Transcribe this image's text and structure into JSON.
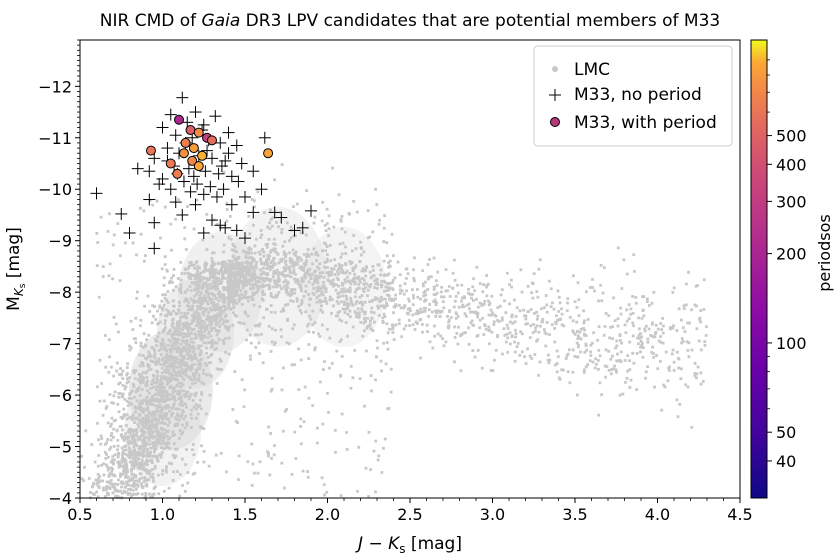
{
  "chart_data": {
    "type": "scatter",
    "title": "NIR CMD of Gaia DR3 LPV candidates that are potential members of M33",
    "xlabel": "J − K_s [mag]",
    "ylabel": "M_Ks [mag]",
    "xlim": [
      0.5,
      4.5
    ],
    "ylim": [
      -4,
      -12.9
    ],
    "y_inverted": true,
    "xticks": [
      0.5,
      1.0,
      1.5,
      2.0,
      2.5,
      3.0,
      3.5,
      4.0,
      4.5
    ],
    "xtick_labels": [
      "0.5",
      "1.0",
      "1.5",
      "2.0",
      "2.5",
      "3.0",
      "3.5",
      "4.0",
      "4.5"
    ],
    "yticks": [
      -4,
      -5,
      -6,
      -7,
      -8,
      -9,
      -10,
      -11,
      -12
    ],
    "ytick_labels": [
      "−4",
      "−5",
      "−6",
      "−7",
      "−8",
      "−9",
      "−10",
      "−11",
      "−12"
    ],
    "legend": {
      "placement": "top-right",
      "entries": [
        "LMC",
        "M33, no period",
        "M33, with period"
      ]
    },
    "colorbar": {
      "label": "periodsos",
      "scale": "log",
      "range": [
        30,
        1050
      ],
      "ticks": [
        40,
        50,
        100,
        200,
        300,
        400,
        500
      ],
      "tick_labels": [
        "40",
        "50",
        "100",
        "200",
        "300",
        "400",
        "500"
      ],
      "colormap": "plasma"
    },
    "lmc_description_points": {
      "note": "dense grey background population (approximate density ridge)",
      "ridge": [
        [
          0.9,
          -5.2
        ],
        [
          1.0,
          -5.9
        ],
        [
          1.1,
          -6.4
        ],
        [
          1.2,
          -7.2
        ],
        [
          1.3,
          -7.8
        ],
        [
          1.45,
          -8.3
        ],
        [
          1.7,
          -8.4
        ],
        [
          2.0,
          -8.2
        ],
        [
          2.4,
          -7.9
        ],
        [
          3.0,
          -7.5
        ],
        [
          3.6,
          -7.2
        ],
        [
          4.2,
          -7.0
        ]
      ]
    },
    "series": [
      {
        "name": "M33, no period",
        "marker": "plus",
        "points": [
          [
            1.12,
            -11.78
          ],
          [
            1.05,
            -11.45
          ],
          [
            1.2,
            -11.5
          ],
          [
            1.32,
            -11.42
          ],
          [
            1.0,
            -11.2
          ],
          [
            1.15,
            -11.3
          ],
          [
            1.25,
            -11.25
          ],
          [
            1.4,
            -11.1
          ],
          [
            1.08,
            -11.05
          ],
          [
            1.18,
            -11.0
          ],
          [
            1.28,
            -10.95
          ],
          [
            1.35,
            -10.9
          ],
          [
            1.45,
            -10.85
          ],
          [
            1.62,
            -11.0
          ],
          [
            1.03,
            -10.8
          ],
          [
            1.1,
            -10.7
          ],
          [
            1.22,
            -10.65
          ],
          [
            1.3,
            -10.6
          ],
          [
            1.38,
            -10.55
          ],
          [
            1.48,
            -10.5
          ],
          [
            0.95,
            -10.6
          ],
          [
            1.07,
            -10.45
          ],
          [
            1.16,
            -10.4
          ],
          [
            1.26,
            -10.35
          ],
          [
            1.34,
            -10.3
          ],
          [
            1.42,
            -10.25
          ],
          [
            1.55,
            -10.35
          ],
          [
            0.85,
            -10.4
          ],
          [
            0.92,
            -10.35
          ],
          [
            1.0,
            -10.2
          ],
          [
            1.13,
            -10.15
          ],
          [
            1.21,
            -10.1
          ],
          [
            1.29,
            -10.05
          ],
          [
            1.37,
            -10.0
          ],
          [
            1.46,
            -10.15
          ],
          [
            0.98,
            -10.1
          ],
          [
            1.05,
            -10.0
          ],
          [
            1.17,
            -9.95
          ],
          [
            1.25,
            -9.9
          ],
          [
            1.33,
            -9.85
          ],
          [
            1.5,
            -9.85
          ],
          [
            1.6,
            -10.0
          ],
          [
            0.6,
            -9.92
          ],
          [
            0.92,
            -9.8
          ],
          [
            1.08,
            -9.75
          ],
          [
            1.2,
            -9.7
          ],
          [
            1.42,
            -9.7
          ],
          [
            1.55,
            -9.55
          ],
          [
            1.68,
            -9.55
          ],
          [
            1.72,
            -9.45
          ],
          [
            1.9,
            -9.58
          ],
          [
            1.85,
            -9.25
          ],
          [
            1.8,
            -9.2
          ],
          [
            0.75,
            -9.52
          ],
          [
            0.95,
            -9.35
          ],
          [
            1.12,
            -9.5
          ],
          [
            1.3,
            -9.4
          ],
          [
            1.38,
            -9.25
          ],
          [
            1.45,
            -9.2
          ],
          [
            1.25,
            -9.15
          ],
          [
            1.35,
            -9.3
          ],
          [
            1.5,
            -9.05
          ],
          [
            0.8,
            -9.15
          ],
          [
            0.95,
            -8.85
          ],
          [
            1.03,
            -10.55
          ],
          [
            1.14,
            -10.9
          ],
          [
            1.24,
            -11.15
          ],
          [
            1.19,
            -10.25
          ],
          [
            1.27,
            -10.75
          ],
          [
            1.09,
            -10.3
          ],
          [
            1.4,
            -10.7
          ],
          [
            1.36,
            -10.45
          ]
        ]
      },
      {
        "name": "M33, with period",
        "marker": "circle",
        "points": [
          [
            1.1,
            -11.35,
            210
          ],
          [
            1.17,
            -11.15,
            480
          ],
          [
            1.22,
            -11.1,
            720
          ],
          [
            1.27,
            -11.0,
            300
          ],
          [
            1.3,
            -10.95,
            560
          ],
          [
            1.14,
            -10.9,
            650
          ],
          [
            1.19,
            -10.8,
            820
          ],
          [
            0.93,
            -10.75,
            600
          ],
          [
            1.13,
            -10.7,
            750
          ],
          [
            1.24,
            -10.65,
            900
          ],
          [
            1.64,
            -10.7,
            850
          ],
          [
            1.18,
            -10.55,
            700
          ],
          [
            1.05,
            -10.5,
            620
          ],
          [
            1.22,
            -10.45,
            880
          ],
          [
            1.09,
            -10.3,
            640
          ]
        ]
      }
    ]
  }
}
